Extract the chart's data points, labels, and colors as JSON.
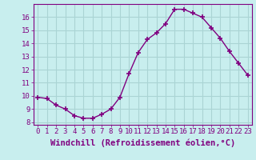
{
  "x": [
    0,
    1,
    2,
    3,
    4,
    5,
    6,
    7,
    8,
    9,
    10,
    11,
    12,
    13,
    14,
    15,
    16,
    17,
    18,
    19,
    20,
    21,
    22,
    23
  ],
  "y": [
    9.9,
    9.8,
    9.3,
    9.0,
    8.5,
    8.3,
    8.3,
    8.6,
    9.0,
    9.9,
    11.7,
    13.3,
    14.3,
    14.8,
    15.5,
    16.6,
    16.6,
    16.3,
    16.0,
    15.2,
    14.4,
    13.4,
    12.5,
    11.6
  ],
  "line_color": "#800080",
  "marker": "+",
  "bg_color": "#c8eeee",
  "grid_color": "#aad4d4",
  "xlabel": "Windchill (Refroidissement éolien,°C)",
  "xlabel_color": "#800080",
  "xlim": [
    -0.5,
    23.5
  ],
  "ylim": [
    7.8,
    17.0
  ],
  "yticks": [
    8,
    9,
    10,
    11,
    12,
    13,
    14,
    15,
    16
  ],
  "xticks": [
    0,
    1,
    2,
    3,
    4,
    5,
    6,
    7,
    8,
    9,
    10,
    11,
    12,
    13,
    14,
    15,
    16,
    17,
    18,
    19,
    20,
    21,
    22,
    23
  ],
  "tick_color": "#800080",
  "tick_label_fontsize": 6.5,
  "xlabel_fontsize": 7.5
}
